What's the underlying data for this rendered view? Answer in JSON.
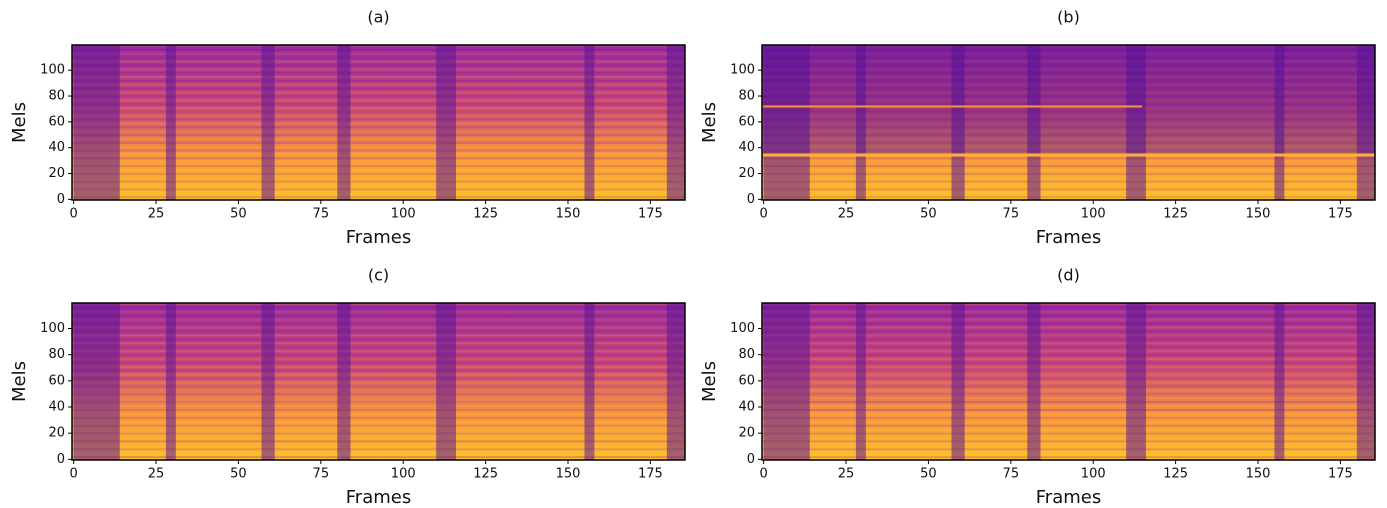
{
  "chart_data": [
    {
      "type": "spectrogram",
      "title": "(a)",
      "xlabel": "Frames",
      "ylabel": "Mels",
      "xlim": [
        -0.5,
        185.5
      ],
      "ylim": [
        -0.5,
        119.5
      ],
      "xticks": [
        0,
        25,
        50,
        75,
        100,
        125,
        150,
        175
      ],
      "yticks": [
        0,
        20,
        40,
        60,
        80,
        100
      ]
    },
    {
      "type": "spectrogram",
      "title": "(b)",
      "xlabel": "Frames",
      "ylabel": "Mels",
      "xlim": [
        -0.5,
        185.5
      ],
      "ylim": [
        -0.5,
        119.5
      ],
      "xticks": [
        0,
        25,
        50,
        75,
        100,
        125,
        150,
        175
      ],
      "yticks": [
        0,
        20,
        40,
        60,
        80,
        100
      ]
    },
    {
      "type": "spectrogram",
      "title": "(c)",
      "xlabel": "Frames",
      "ylabel": "Mels",
      "xlim": [
        -0.5,
        185.5
      ],
      "ylim": [
        -0.5,
        119.5
      ],
      "xticks": [
        0,
        25,
        50,
        75,
        100,
        125,
        150,
        175
      ],
      "yticks": [
        0,
        20,
        40,
        60,
        80,
        100
      ]
    },
    {
      "type": "spectrogram",
      "title": "(d)",
      "xlabel": "Frames",
      "ylabel": "Mels",
      "xlim": [
        -0.5,
        185.5
      ],
      "ylim": [
        -0.5,
        119.5
      ],
      "xticks": [
        0,
        25,
        50,
        75,
        100,
        125,
        150,
        175
      ],
      "yticks": [
        0,
        20,
        40,
        60,
        80,
        100
      ]
    }
  ]
}
